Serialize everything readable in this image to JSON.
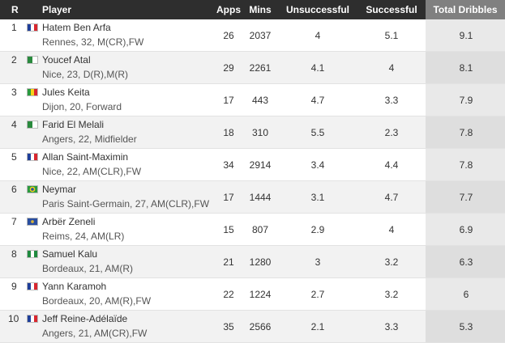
{
  "header": {
    "columns": [
      "R",
      "Player",
      "Apps",
      "Mins",
      "Unsuccessful",
      "Successful",
      "Total Dribbles"
    ]
  },
  "rows": [
    {
      "rank": "1",
      "name": "Hatem Ben Arfa",
      "detail": "Rennes, 32, M(CR),FW",
      "apps": "26",
      "mins": "2037",
      "unsuccessful": "4",
      "successful": "5.1",
      "total": "9.1"
    },
    {
      "rank": "2",
      "name": "Youcef Atal",
      "detail": "Nice, 23, D(R),M(R)",
      "apps": "29",
      "mins": "2261",
      "unsuccessful": "4.1",
      "successful": "4",
      "total": "8.1"
    },
    {
      "rank": "3",
      "name": "Jules Keita",
      "detail": "Dijon, 20, Forward",
      "apps": "17",
      "mins": "443",
      "unsuccessful": "4.7",
      "successful": "3.3",
      "total": "7.9"
    },
    {
      "rank": "4",
      "name": "Farid El Melali",
      "detail": "Angers, 22, Midfielder",
      "apps": "18",
      "mins": "310",
      "unsuccessful": "5.5",
      "successful": "2.3",
      "total": "7.8"
    },
    {
      "rank": "5",
      "name": "Allan Saint-Maximin",
      "detail": "Nice, 22, AM(CLR),FW",
      "apps": "34",
      "mins": "2914",
      "unsuccessful": "3.4",
      "successful": "4.4",
      "total": "7.8"
    },
    {
      "rank": "6",
      "name": "Neymar",
      "detail": "Paris Saint-Germain, 27, AM(CLR),FW",
      "apps": "17",
      "mins": "1444",
      "unsuccessful": "3.1",
      "successful": "4.7",
      "total": "7.7"
    },
    {
      "rank": "7",
      "name": "Arbër Zeneli",
      "detail": "Reims, 24, AM(LR)",
      "apps": "15",
      "mins": "807",
      "unsuccessful": "2.9",
      "successful": "4",
      "total": "6.9"
    },
    {
      "rank": "8",
      "name": "Samuel Kalu",
      "detail": "Bordeaux, 21, AM(R)",
      "apps": "21",
      "mins": "1280",
      "unsuccessful": "3",
      "successful": "3.2",
      "total": "6.3"
    },
    {
      "rank": "9",
      "name": "Yann Karamoh",
      "detail": "Bordeaux, 20, AM(R),FW",
      "apps": "22",
      "mins": "1224",
      "unsuccessful": "2.7",
      "successful": "3.2",
      "total": "6"
    },
    {
      "rank": "10",
      "name": "Jeff Reine-Adélaïde",
      "detail": "Angers, 21, AM(CR),FW",
      "apps": "35",
      "mins": "2566",
      "unsuccessful": "2.1",
      "successful": "3.3",
      "total": "5.3"
    }
  ]
}
